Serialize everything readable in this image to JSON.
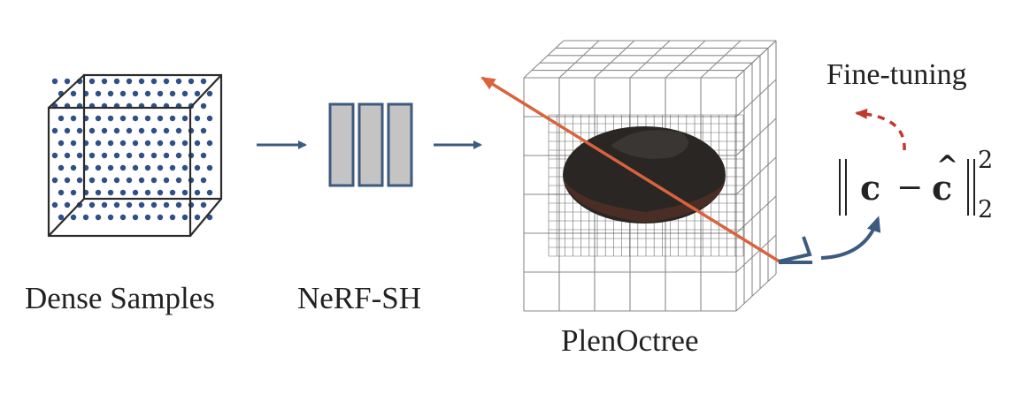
{
  "labels": {
    "dense_samples": "Dense Samples",
    "nerf_sh": "NeRF-SH",
    "plenoctree": "PlenOctree",
    "fine_tuning": "Fine-tuning"
  },
  "loss": {
    "c": "c",
    "minus": "−",
    "c_hat": "c",
    "hat": "^",
    "superscript": "2",
    "subscript": "2"
  },
  "colors": {
    "arrow_blue": "#3d5a7f",
    "dot_blue": "#2f4f86",
    "ray_orange": "#d9633d",
    "dashed_red": "#c0392b",
    "block_gray": "#c4c4c4",
    "object_dark": "#2a2623"
  },
  "icons": {
    "camera": "camera-triangle-icon"
  }
}
